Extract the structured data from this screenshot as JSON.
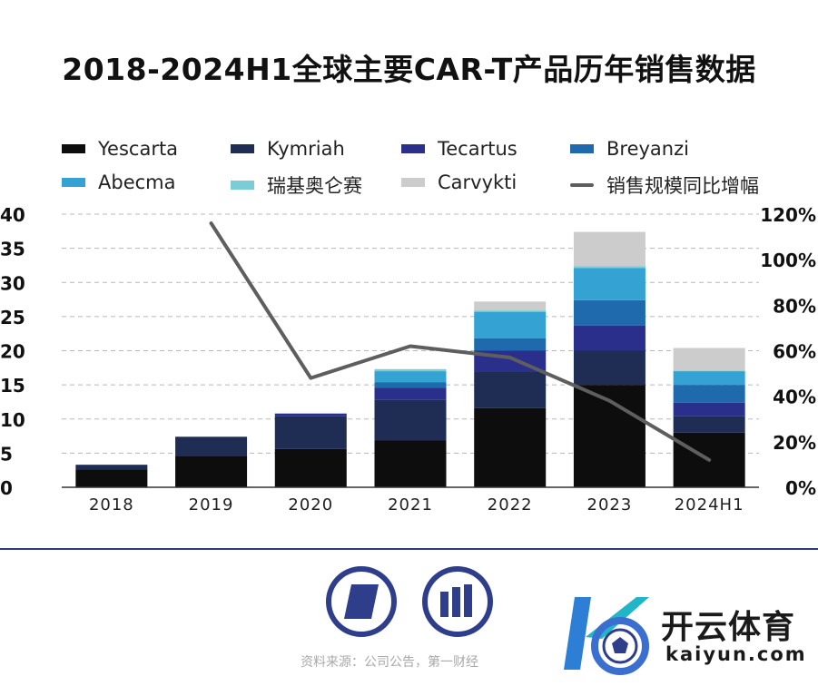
{
  "title": "2018-2024H1全球主要CAR-T产品历年销售数据",
  "legend": [
    {
      "label": "Yescarta",
      "color": "#0d0d0d",
      "kind": "bar"
    },
    {
      "label": "Kymriah",
      "color": "#1f2d55",
      "kind": "bar"
    },
    {
      "label": "Tecartus",
      "color": "#2b2f8c",
      "kind": "bar"
    },
    {
      "label": "Breyanzi",
      "color": "#1f6aad",
      "kind": "bar"
    },
    {
      "label": "Abecma",
      "color": "#34a3d4",
      "kind": "bar"
    },
    {
      "label": "瑞基奥仑赛",
      "color": "#79cdd6",
      "kind": "bar"
    },
    {
      "label": "Carvykti",
      "color": "#cccccc",
      "kind": "bar"
    },
    {
      "label": "销售规模同比增幅",
      "color": "#5e5e5e",
      "kind": "line"
    }
  ],
  "chart_data": {
    "type": "bar",
    "stacked": true,
    "categories": [
      "2018",
      "2019",
      "2020",
      "2021",
      "2022",
      "2023",
      "2024H1"
    ],
    "series": [
      {
        "name": "Yescarta",
        "values": [
          2.6,
          4.6,
          5.6,
          6.9,
          11.6,
          15.0,
          8.0
        ]
      },
      {
        "name": "Kymriah",
        "values": [
          0.7,
          2.8,
          4.8,
          5.9,
          5.4,
          5.0,
          2.4
        ]
      },
      {
        "name": "Tecartus",
        "values": [
          0,
          0,
          0.4,
          1.8,
          3.0,
          3.7,
          2.0
        ]
      },
      {
        "name": "Breyanzi",
        "values": [
          0,
          0,
          0,
          0.8,
          1.8,
          3.7,
          2.6
        ]
      },
      {
        "name": "Abecma",
        "values": [
          0,
          0,
          0,
          1.6,
          3.9,
          4.7,
          2.0
        ]
      },
      {
        "name": "瑞基奥仑赛",
        "values": [
          0,
          0,
          0,
          0.3,
          0.2,
          0.3,
          0.1
        ]
      },
      {
        "name": "Carvykti",
        "values": [
          0,
          0,
          0,
          0,
          1.3,
          5.0,
          3.3
        ]
      }
    ],
    "line_series": {
      "name": "销售规模同比增幅",
      "values": [
        null,
        116,
        48,
        62,
        57,
        38,
        12
      ],
      "axis": "right"
    },
    "ylim": [
      0,
      40
    ],
    "y_ticks": [
      "0",
      "5",
      "10",
      "15",
      "20",
      "25",
      "30",
      "35",
      "40"
    ],
    "y2lim": [
      0,
      120
    ],
    "y2_ticks": [
      "0%",
      "20%",
      "40%",
      "60%",
      "80%",
      "100%",
      "120%"
    ],
    "grid": true,
    "legend_position": "top"
  },
  "footer": {
    "source": "资料来源：公司公告，第一财经",
    "watermark_cn": "开云体育",
    "watermark_url": "kaiyun.com"
  }
}
